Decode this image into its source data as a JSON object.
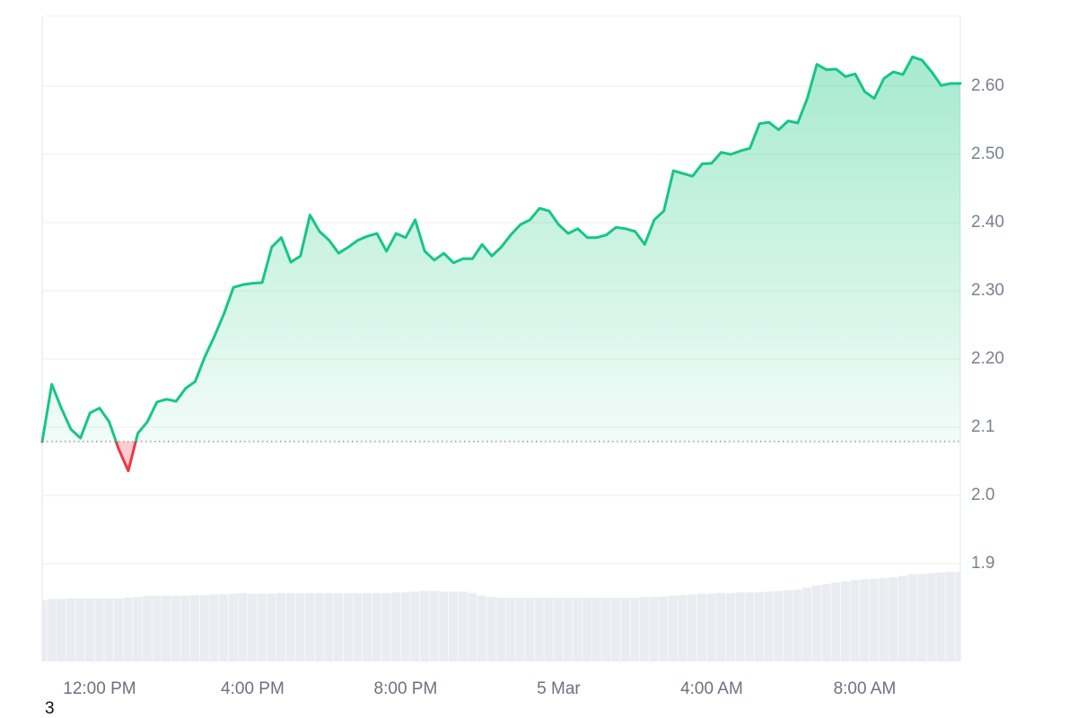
{
  "chart_data": {
    "type": "area",
    "x": [
      0,
      1,
      2,
      3,
      4,
      5,
      6,
      7,
      8,
      9,
      10,
      11,
      12,
      13,
      14,
      15,
      16,
      17,
      18,
      19,
      20,
      21,
      22,
      23,
      24,
      25,
      26,
      27,
      28,
      29,
      30,
      31,
      32,
      33,
      34,
      35,
      36,
      37,
      38,
      39,
      40,
      41,
      42,
      43,
      44,
      45,
      46,
      47,
      48,
      49,
      50,
      51,
      52,
      53,
      54,
      55,
      56,
      57,
      58,
      59,
      60,
      61,
      62,
      63,
      64,
      65,
      66,
      67,
      68,
      69,
      70,
      71,
      72,
      73,
      74,
      75,
      76,
      77,
      78,
      79,
      80,
      81,
      82,
      83,
      84,
      85,
      86,
      87,
      88,
      89,
      90,
      91,
      92,
      93,
      94,
      95,
      96
    ],
    "values": [
      2.079,
      2.163,
      2.128,
      2.097,
      2.084,
      2.121,
      2.128,
      2.108,
      2.068,
      2.036,
      2.091,
      2.108,
      2.137,
      2.141,
      2.138,
      2.157,
      2.167,
      2.203,
      2.233,
      2.266,
      2.305,
      2.309,
      2.311,
      2.312,
      2.364,
      2.378,
      2.342,
      2.351,
      2.411,
      2.387,
      2.374,
      2.355,
      2.364,
      2.374,
      2.38,
      2.384,
      2.358,
      2.384,
      2.378,
      2.404,
      2.358,
      2.345,
      2.355,
      2.341,
      2.347,
      2.347,
      2.368,
      2.351,
      2.364,
      2.382,
      2.397,
      2.404,
      2.421,
      2.417,
      2.397,
      2.384,
      2.391,
      2.378,
      2.378,
      2.382,
      2.393,
      2.391,
      2.387,
      2.368,
      2.404,
      2.417,
      2.476,
      2.472,
      2.468,
      2.486,
      2.487,
      2.503,
      2.5,
      2.505,
      2.509,
      2.545,
      2.547,
      2.536,
      2.549,
      2.546,
      2.582,
      2.632,
      2.624,
      2.625,
      2.614,
      2.618,
      2.592,
      2.582,
      2.611,
      2.621,
      2.617,
      2.643,
      2.638,
      2.621,
      2.601,
      2.604,
      2.604
    ],
    "volume": [
      1.846,
      1.848,
      1.848,
      1.849,
      1.849,
      1.849,
      1.849,
      1.849,
      1.849,
      1.85,
      1.851,
      1.853,
      1.853,
      1.853,
      1.853,
      1.853,
      1.854,
      1.854,
      1.855,
      1.855,
      1.856,
      1.857,
      1.856,
      1.856,
      1.856,
      1.857,
      1.857,
      1.857,
      1.857,
      1.857,
      1.857,
      1.857,
      1.857,
      1.857,
      1.857,
      1.857,
      1.857,
      1.858,
      1.858,
      1.859,
      1.86,
      1.86,
      1.859,
      1.859,
      1.859,
      1.857,
      1.853,
      1.851,
      1.85,
      1.85,
      1.85,
      1.85,
      1.85,
      1.85,
      1.85,
      1.85,
      1.85,
      1.85,
      1.85,
      1.85,
      1.85,
      1.85,
      1.85,
      1.851,
      1.851,
      1.852,
      1.853,
      1.854,
      1.855,
      1.856,
      1.856,
      1.857,
      1.857,
      1.858,
      1.858,
      1.858,
      1.859,
      1.86,
      1.861,
      1.862,
      1.865,
      1.868,
      1.87,
      1.872,
      1.874,
      1.876,
      1.877,
      1.878,
      1.879,
      1.88,
      1.882,
      1.884,
      1.885,
      1.886,
      1.887,
      1.888,
      1.888
    ],
    "color": "#16c784",
    "negative_color": "#ea3943",
    "volume_color": "#e9ecf1",
    "baseline": 2.079,
    "xlim": [
      0,
      96
    ],
    "xticks": [
      {
        "value": 6,
        "label": "12:00 PM"
      },
      {
        "value": 22,
        "label": "4:00 PM"
      },
      {
        "value": 38,
        "label": "8:00 PM"
      },
      {
        "value": 54,
        "label": "5 Mar"
      },
      {
        "value": 70,
        "label": "4:00 AM"
      },
      {
        "value": 86,
        "label": "8:00 AM"
      }
    ],
    "ylim": [
      1.7566,
      2.7026
    ],
    "yticks": [
      {
        "value": 2.6,
        "label": "2.60"
      },
      {
        "value": 2.5,
        "label": "2.50"
      },
      {
        "value": 2.4,
        "label": "2.40"
      },
      {
        "value": 2.3,
        "label": "2.30"
      },
      {
        "value": 2.2,
        "label": "2.20"
      },
      2.1,
      {
        "value": 2.0,
        "label": "2.0"
      },
      1.9
    ],
    "grid": true,
    "footnote": "3"
  }
}
